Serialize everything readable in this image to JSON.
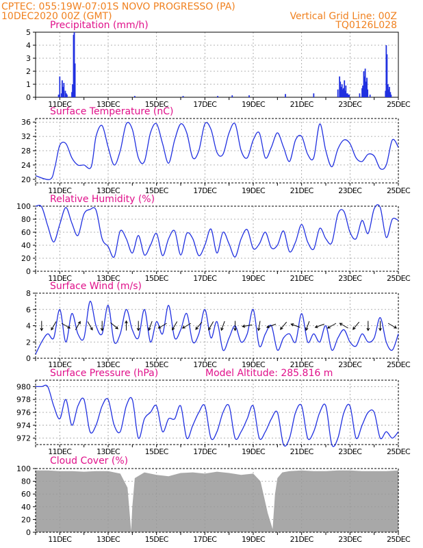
{
  "header": {
    "line1": "CPTEC:   055:19W-07:01S   NOVO PROGRESSO (PA)",
    "line2": "10DEC2020 00Z (GMT)",
    "grid_note": "Vertical Grid Line: 00Z",
    "model_id": "TQ0126L028"
  },
  "x_ticks": [
    "11DEC",
    "13DEC",
    "15DEC",
    "17DEC",
    "19DEC",
    "21DEC",
    "23DEC",
    "25DEC"
  ],
  "colors": {
    "header": "#f0801e",
    "title": "#e0108a",
    "series": "#2030e0",
    "cloud": "#a8a8a8",
    "grid": "#999999"
  },
  "chart_data": [
    {
      "type": "bar",
      "title": "Precipitation (mm/h)",
      "x_range": [
        "2020-12-10T00Z",
        "2020-12-25T00Z"
      ],
      "ylim": [
        0,
        5
      ],
      "yticks": [
        0,
        1,
        2,
        3,
        4,
        5
      ],
      "series": [
        {
          "x_days": [
            0.95,
            1.0,
            1.07,
            1.1,
            1.13,
            1.17,
            1.23,
            1.27,
            1.3,
            1.5,
            1.53,
            1.57,
            1.6,
            1.63,
            4.1,
            6.1,
            7.53,
            8.13,
            8.83,
            10.33,
            11.5,
            12.5,
            12.57,
            12.6,
            12.63,
            12.67,
            12.7,
            12.73,
            12.77,
            12.8,
            12.83,
            12.87,
            12.9,
            12.93,
            12.97,
            13.4,
            13.5,
            13.53,
            13.57,
            13.6,
            13.63,
            13.67,
            13.7,
            13.73,
            13.83,
            14.47,
            14.5,
            14.53,
            14.57,
            14.6,
            14.63,
            14.67,
            14.7
          ],
          "values": [
            0.2,
            1.6,
            0.3,
            1.3,
            0.8,
            1.1,
            0.5,
            0.3,
            0.2,
            0.4,
            1.0,
            4.8,
            5.0,
            2.6,
            0.1,
            0.1,
            0.1,
            0.15,
            0.15,
            0.25,
            0.3,
            0.6,
            1.6,
            1.2,
            0.8,
            1.0,
            0.6,
            0.7,
            1.3,
            0.5,
            0.9,
            0.3,
            0.3,
            0.2,
            0.2,
            0.3,
            0.7,
            0.9,
            2.0,
            1.6,
            2.2,
            1.2,
            1.5,
            0.6,
            0.2,
            0.5,
            4.0,
            3.3,
            1.0,
            0.6,
            0.8,
            0.4,
            0.2
          ]
        }
      ]
    },
    {
      "type": "line",
      "title": "Surface Temperature (nC)",
      "ylim": [
        19,
        37
      ],
      "yticks": [
        20,
        24,
        28,
        32,
        36
      ],
      "series": [
        {
          "x_days": [
            0,
            0.6,
            0.8,
            1.0,
            1.25,
            1.5,
            1.75,
            2.0,
            2.3,
            2.5,
            2.75,
            3.0,
            3.25,
            3.5,
            3.75,
            4.0,
            4.25,
            4.5,
            4.75,
            5.0,
            5.25,
            5.5,
            5.75,
            6.0,
            6.25,
            6.5,
            6.75,
            7.0,
            7.25,
            7.5,
            7.75,
            8.0,
            8.25,
            8.5,
            8.75,
            9.0,
            9.25,
            9.5,
            9.75,
            10.0,
            10.25,
            10.5,
            10.75,
            11.0,
            11.25,
            11.5,
            11.75,
            12.0,
            12.25,
            12.5,
            12.75,
            13.0,
            13.25,
            13.5,
            13.75,
            14.0,
            14.25,
            14.5,
            14.75,
            15.0
          ],
          "values": [
            21,
            20,
            23.5,
            29.5,
            30,
            26,
            24,
            24,
            23.5,
            32,
            35,
            29,
            24,
            28,
            35.5,
            34,
            26,
            25,
            33,
            35.5,
            30,
            24.5,
            31,
            35.5,
            33,
            26,
            28,
            35.5,
            34,
            27.5,
            27,
            33,
            35.5,
            28,
            26,
            31,
            33,
            26,
            29,
            33,
            29,
            25,
            31,
            32,
            27,
            26,
            35.5,
            28,
            23.5,
            28.5,
            31,
            30,
            26,
            25,
            27,
            26.5,
            23,
            24,
            31,
            29
          ]
        }
      ]
    },
    {
      "type": "line",
      "title": "Relative Humidity (%)",
      "ylim": [
        0,
        100
      ],
      "yticks": [
        0,
        20,
        40,
        60,
        80,
        100
      ],
      "series": [
        {
          "x_days": [
            0,
            0.25,
            0.5,
            0.75,
            1.0,
            1.25,
            1.5,
            1.75,
            2.0,
            2.25,
            2.5,
            2.75,
            3.0,
            3.25,
            3.5,
            3.75,
            4.0,
            4.25,
            4.5,
            4.75,
            5.0,
            5.25,
            5.5,
            5.75,
            6.0,
            6.25,
            6.5,
            6.75,
            7.0,
            7.25,
            7.5,
            7.75,
            8.0,
            8.25,
            8.5,
            8.75,
            9.0,
            9.25,
            9.5,
            9.75,
            10.0,
            10.25,
            10.5,
            10.75,
            11.0,
            11.25,
            11.5,
            11.75,
            12.0,
            12.25,
            12.5,
            12.75,
            13.0,
            13.25,
            13.5,
            13.75,
            14.0,
            14.25,
            14.5,
            14.75,
            15.0
          ],
          "values": [
            100,
            99,
            70,
            45,
            72,
            98,
            74,
            55,
            88,
            95,
            94,
            50,
            38,
            22,
            62,
            50,
            28,
            55,
            25,
            40,
            58,
            24,
            50,
            62,
            25,
            58,
            50,
            24,
            40,
            65,
            28,
            60,
            42,
            22,
            50,
            64,
            35,
            42,
            60,
            36,
            40,
            62,
            30,
            45,
            72,
            45,
            34,
            66,
            50,
            44,
            88,
            92,
            60,
            50,
            78,
            58,
            96,
            98,
            52,
            80,
            78
          ]
        }
      ]
    },
    {
      "type": "line",
      "title": "Surface Wind (m/s)",
      "ylim": [
        0,
        8
      ],
      "yticks": [
        0,
        2,
        4,
        6,
        8
      ],
      "series": [
        {
          "x_days": [
            0,
            0.25,
            0.5,
            0.75,
            1.0,
            1.25,
            1.5,
            1.75,
            2.0,
            2.25,
            2.5,
            2.75,
            3.0,
            3.25,
            3.5,
            3.75,
            4.0,
            4.25,
            4.5,
            4.75,
            5.0,
            5.25,
            5.5,
            5.75,
            6.0,
            6.25,
            6.5,
            6.75,
            7.0,
            7.25,
            7.5,
            7.75,
            8.0,
            8.25,
            8.5,
            8.75,
            9.0,
            9.25,
            9.5,
            9.75,
            10.0,
            10.25,
            10.5,
            10.75,
            11.0,
            11.25,
            11.5,
            11.75,
            12.0,
            12.25,
            12.5,
            12.75,
            13.0,
            13.25,
            13.5,
            13.75,
            14.0,
            14.25,
            14.5,
            14.75,
            15.0
          ],
          "values": [
            0.5,
            2,
            3,
            2.5,
            6,
            2,
            5.5,
            3,
            2.5,
            7,
            4,
            3,
            6.5,
            2,
            3,
            6,
            3.5,
            2.5,
            6,
            2,
            4.5,
            3,
            6.5,
            2.5,
            3.5,
            5.5,
            2,
            3,
            6,
            2.5,
            4.5,
            1,
            2.5,
            4,
            2,
            3,
            6,
            1.5,
            3,
            4,
            1,
            2.5,
            3,
            2,
            5.5,
            2,
            3,
            2,
            4,
            1,
            2.5,
            3.5,
            2,
            1.5,
            3,
            2,
            2.5,
            5,
            2,
            1,
            3
          ]
        }
      ],
      "wind_arrows": {
        "x_days": [
          0.25,
          0.75,
          1.25,
          1.75,
          2.25,
          2.75,
          3.25,
          3.75,
          4.25,
          4.75,
          5.25,
          5.75,
          6.25,
          6.75,
          7.25,
          7.75,
          8.25,
          8.75,
          9.25,
          9.75,
          10.25,
          10.75,
          11.25,
          11.75,
          12.25,
          12.75,
          13.25,
          13.75,
          14.25,
          14.75
        ],
        "direction_deg": [
          270,
          240,
          330,
          60,
          300,
          270,
          320,
          90,
          270,
          250,
          210,
          240,
          210,
          230,
          240,
          250,
          270,
          190,
          260,
          200,
          230,
          160,
          250,
          200,
          210,
          150,
          230,
          270,
          270,
          330
        ]
      }
    },
    {
      "type": "line",
      "title": "Surface Pressure (hPa)",
      "annotation": "Model Altitude: 285.816  m",
      "ylim": [
        971,
        981
      ],
      "yticks": [
        972,
        974,
        976,
        978,
        980
      ],
      "series": [
        {
          "x_days": [
            0,
            0.25,
            0.5,
            0.75,
            1.0,
            1.25,
            1.5,
            1.75,
            2.0,
            2.25,
            2.5,
            2.75,
            3.0,
            3.25,
            3.5,
            3.75,
            4.0,
            4.25,
            4.5,
            4.75,
            5.0,
            5.25,
            5.5,
            5.75,
            6.0,
            6.25,
            6.5,
            6.75,
            7.0,
            7.25,
            7.5,
            7.75,
            8.0,
            8.25,
            8.5,
            8.75,
            9.0,
            9.25,
            9.5,
            9.75,
            10.0,
            10.25,
            10.5,
            10.75,
            11.0,
            11.25,
            11.5,
            11.75,
            12.0,
            12.25,
            12.5,
            12.75,
            13.0,
            13.25,
            13.5,
            13.75,
            14.0,
            14.25,
            14.5,
            14.75,
            15.0
          ],
          "values": [
            980,
            980,
            980,
            977,
            975,
            978,
            974,
            977,
            978,
            973,
            974,
            977,
            978,
            974,
            973,
            977,
            978,
            972,
            975,
            976,
            977,
            973,
            975,
            975,
            977,
            972,
            974,
            976,
            977,
            972,
            973,
            976,
            977,
            972,
            973,
            975,
            977,
            972,
            973,
            975,
            976,
            971,
            972,
            976,
            977,
            972,
            973,
            976,
            977,
            971,
            972,
            976,
            977,
            972,
            974,
            976,
            976,
            972,
            973,
            972,
            973
          ]
        }
      ]
    },
    {
      "type": "bar",
      "title": "Cloud Cover (%)",
      "ylim": [
        0,
        100
      ],
      "yticks": [
        0,
        20,
        40,
        60,
        80,
        100
      ],
      "series": [
        {
          "x_days": [
            0,
            0.5,
            1.0,
            1.5,
            2.0,
            2.5,
            3.0,
            3.5,
            3.8,
            3.95,
            4.0,
            4.1,
            4.5,
            5.0,
            5.5,
            6.0,
            6.5,
            7.0,
            7.5,
            8.0,
            8.5,
            9.0,
            9.3,
            9.6,
            9.8,
            9.9,
            10.0,
            10.2,
            10.5,
            11.0,
            11.5,
            12.0,
            12.5,
            13.0,
            13.5,
            14.0,
            14.5,
            15.0
          ],
          "values": [
            97,
            97,
            96,
            96,
            95,
            96,
            96,
            92,
            70,
            2,
            40,
            85,
            94,
            90,
            88,
            93,
            94,
            92,
            95,
            93,
            90,
            92,
            80,
            30,
            5,
            60,
            85,
            94,
            96,
            97,
            96,
            96,
            97,
            97,
            96,
            96,
            96,
            97
          ]
        }
      ]
    }
  ]
}
